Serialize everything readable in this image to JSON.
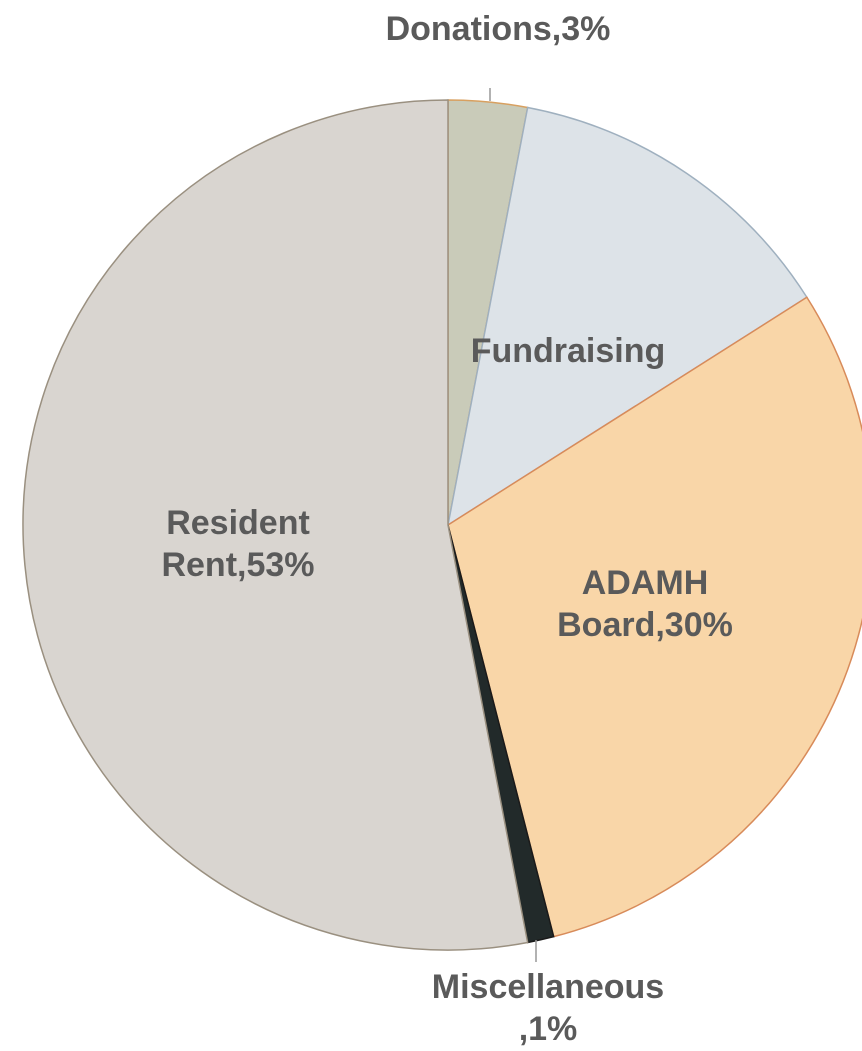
{
  "chart_data": {
    "type": "pie",
    "categories": [
      "Donations",
      "Fundraising",
      "ADAMH Board",
      "Miscellaneous",
      "Resident Rent"
    ],
    "values": [
      3,
      13,
      30,
      1,
      53
    ],
    "value_labels": [
      "Donations,3%",
      "Fundraising",
      "ADAMH Board,30%",
      "Miscellaneous,1%",
      "Resident Rent,53%"
    ],
    "colors": [
      "#c9cbb9",
      "#dde3e8",
      "#f9d6a8",
      "#222a2a",
      "#d9d5d0"
    ]
  }
}
